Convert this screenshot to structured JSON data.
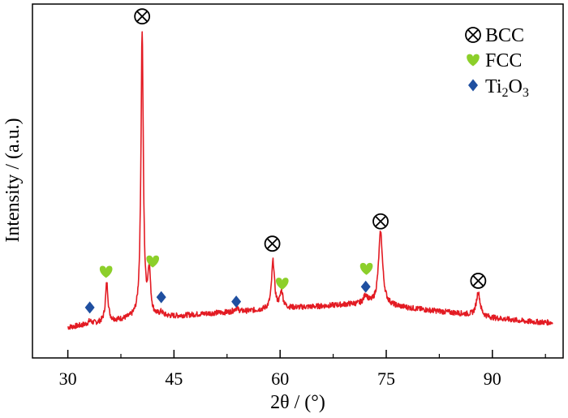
{
  "chart_data": {
    "type": "line",
    "xlabel": "2θ / (°)",
    "ylabel": "Intensity / (a.u.)",
    "xlim": [
      25,
      100
    ],
    "ylim": [
      0,
      1
    ],
    "x_ticks": [
      "30",
      "45",
      "60",
      "75",
      "90"
    ],
    "x_tick_values": [
      30,
      45,
      60,
      75,
      90
    ],
    "y_ticks_labeled": false,
    "legend_position": "top-right",
    "legend": [
      {
        "label": "BCC",
        "marker": "circle-cross",
        "color": "#000000"
      },
      {
        "label": "FCC",
        "marker": "heart",
        "color": "#8ccf2a"
      },
      {
        "label": "Ti2O3",
        "label_base": "Ti",
        "sub1": "2",
        "mid": "O",
        "sub2": "3",
        "marker": "diamond",
        "color": "#1f4fa0"
      }
    ],
    "series": [
      {
        "color": "#e31b23",
        "baseline": [
          [
            30,
            0.018
          ],
          [
            35,
            0.035
          ],
          [
            40,
            0.05
          ],
          [
            45,
            0.055
          ],
          [
            50,
            0.065
          ],
          [
            55,
            0.072
          ],
          [
            60,
            0.082
          ],
          [
            65,
            0.088
          ],
          [
            70,
            0.096
          ],
          [
            75,
            0.092
          ],
          [
            80,
            0.078
          ],
          [
            85,
            0.066
          ],
          [
            90,
            0.05
          ],
          [
            95,
            0.038
          ],
          [
            98.5,
            0.034
          ]
        ],
        "peaks": [
          {
            "x": 33.1,
            "h": 0.01,
            "w": 0.3
          },
          {
            "x": 35.5,
            "h": 0.13,
            "w": 0.22
          },
          {
            "x": 40.5,
            "h": 0.96,
            "w": 0.2
          },
          {
            "x": 41.5,
            "h": 0.15,
            "w": 0.22
          },
          {
            "x": 43.2,
            "h": 0.012,
            "w": 0.3
          },
          {
            "x": 53.8,
            "h": 0.012,
            "w": 0.35
          },
          {
            "x": 59.0,
            "h": 0.16,
            "w": 0.25
          },
          {
            "x": 60.2,
            "h": 0.055,
            "w": 0.25
          },
          {
            "x": 72.1,
            "h": 0.03,
            "w": 0.35
          },
          {
            "x": 74.2,
            "h": 0.245,
            "w": 0.35
          },
          {
            "x": 88.0,
            "h": 0.08,
            "w": 0.32
          }
        ]
      }
    ],
    "annotations": [
      {
        "marker": "circle-cross",
        "x": 40.5,
        "y": 1.065
      },
      {
        "marker": "circle-cross",
        "x": 58.9,
        "y": 0.3
      },
      {
        "marker": "circle-cross",
        "x": 74.2,
        "y": 0.375
      },
      {
        "marker": "circle-cross",
        "x": 88.0,
        "y": 0.175
      },
      {
        "marker": "heart",
        "x": 35.4,
        "y": 0.205
      },
      {
        "marker": "heart",
        "x": 42.0,
        "y": 0.24
      },
      {
        "marker": "heart",
        "x": 60.3,
        "y": 0.165
      },
      {
        "marker": "heart",
        "x": 72.2,
        "y": 0.215
      },
      {
        "marker": "diamond",
        "x": 33.1,
        "y": 0.085
      },
      {
        "marker": "diamond",
        "x": 43.2,
        "y": 0.12
      },
      {
        "marker": "diamond",
        "x": 53.8,
        "y": 0.105
      },
      {
        "marker": "diamond",
        "x": 72.1,
        "y": 0.155
      }
    ]
  }
}
